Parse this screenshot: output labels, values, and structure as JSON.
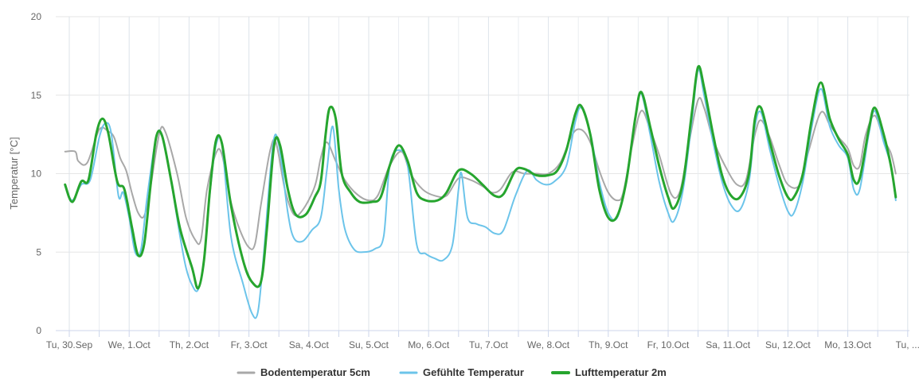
{
  "chart_data": {
    "type": "line",
    "ylabel": "Temperatur [°C]",
    "ylim": [
      0,
      20
    ],
    "yticks": [
      0,
      5,
      10,
      15,
      20
    ],
    "xlim": [
      0,
      14.7
    ],
    "xticks": [
      {
        "pos": 0,
        "label": "Tu, 30.Sep"
      },
      {
        "pos": 1,
        "label": "We, 1.Oct"
      },
      {
        "pos": 2,
        "label": "Th, 2.Oct"
      },
      {
        "pos": 3,
        "label": "Fr, 3.Oct"
      },
      {
        "pos": 4,
        "label": "Sa, 4.Oct"
      },
      {
        "pos": 5,
        "label": "Su, 5.Oct"
      },
      {
        "pos": 6,
        "label": "Mo, 6.Oct"
      },
      {
        "pos": 7,
        "label": "Tu, 7.Oct"
      },
      {
        "pos": 8,
        "label": "We, 8.Oct"
      },
      {
        "pos": 9,
        "label": "Th, 9.Oct"
      },
      {
        "pos": 10,
        "label": "Fr, 10.Oct"
      },
      {
        "pos": 11,
        "label": "Sa, 11.Oct"
      },
      {
        "pos": 12,
        "label": "Su, 12.Oct"
      },
      {
        "pos": 13,
        "label": "Mo, 13.Oct"
      },
      {
        "pos": 14,
        "label": "Tu, ..."
      }
    ],
    "grid": true,
    "legend_position": "bottom-center",
    "series": [
      {
        "name": "Bodentemperatur 5cm",
        "color": "#a8a8a8",
        "width": 2,
        "points": [
          [
            -0.07,
            11.4
          ],
          [
            0.1,
            11.4
          ],
          [
            0.15,
            10.8
          ],
          [
            0.3,
            10.7
          ],
          [
            0.5,
            12.8
          ],
          [
            0.65,
            12.7
          ],
          [
            0.75,
            12.3
          ],
          [
            0.85,
            11.0
          ],
          [
            0.95,
            10.2
          ],
          [
            1.05,
            8.7
          ],
          [
            1.15,
            7.5
          ],
          [
            1.25,
            7.3
          ],
          [
            1.35,
            9.0
          ],
          [
            1.5,
            12.5
          ],
          [
            1.6,
            12.7
          ],
          [
            1.8,
            10.0
          ],
          [
            1.95,
            7.2
          ],
          [
            2.1,
            5.8
          ],
          [
            2.2,
            5.8
          ],
          [
            2.3,
            9.0
          ],
          [
            2.45,
            11.3
          ],
          [
            2.55,
            11.2
          ],
          [
            2.7,
            8.2
          ],
          [
            2.85,
            6.4
          ],
          [
            3.0,
            5.3
          ],
          [
            3.1,
            5.5
          ],
          [
            3.2,
            8.0
          ],
          [
            3.35,
            11.4
          ],
          [
            3.45,
            12.0
          ],
          [
            3.6,
            9.0
          ],
          [
            3.75,
            7.4
          ],
          [
            3.9,
            7.7
          ],
          [
            4.1,
            9.2
          ],
          [
            4.2,
            11.0
          ],
          [
            4.3,
            12.0
          ],
          [
            4.45,
            10.8
          ],
          [
            4.6,
            9.6
          ],
          [
            4.8,
            8.7
          ],
          [
            5.0,
            8.3
          ],
          [
            5.15,
            8.6
          ],
          [
            5.35,
            10.5
          ],
          [
            5.55,
            11.4
          ],
          [
            5.7,
            10.0
          ],
          [
            5.9,
            9.0
          ],
          [
            6.1,
            8.6
          ],
          [
            6.3,
            8.6
          ],
          [
            6.5,
            9.7
          ],
          [
            6.7,
            9.6
          ],
          [
            6.9,
            9.2
          ],
          [
            7.05,
            8.8
          ],
          [
            7.2,
            9.0
          ],
          [
            7.4,
            10.1
          ],
          [
            7.6,
            10.0
          ],
          [
            7.8,
            10.0
          ],
          [
            8.0,
            10.0
          ],
          [
            8.2,
            10.7
          ],
          [
            8.4,
            12.5
          ],
          [
            8.55,
            12.8
          ],
          [
            8.7,
            12.0
          ],
          [
            8.85,
            10.2
          ],
          [
            9.0,
            8.8
          ],
          [
            9.15,
            8.3
          ],
          [
            9.25,
            8.8
          ],
          [
            9.4,
            11.8
          ],
          [
            9.55,
            14.0
          ],
          [
            9.7,
            12.8
          ],
          [
            9.85,
            11.2
          ],
          [
            10.05,
            8.7
          ],
          [
            10.2,
            8.9
          ],
          [
            10.35,
            12.0
          ],
          [
            10.5,
            14.7
          ],
          [
            10.6,
            14.2
          ],
          [
            10.75,
            12.2
          ],
          [
            10.95,
            10.5
          ],
          [
            11.15,
            9.3
          ],
          [
            11.3,
            9.6
          ],
          [
            11.45,
            12.5
          ],
          [
            11.55,
            13.4
          ],
          [
            11.7,
            12.3
          ],
          [
            11.85,
            10.6
          ],
          [
            12.0,
            9.3
          ],
          [
            12.2,
            9.3
          ],
          [
            12.35,
            11.5
          ],
          [
            12.55,
            13.9
          ],
          [
            12.7,
            13.1
          ],
          [
            12.85,
            12.3
          ],
          [
            13.0,
            11.6
          ],
          [
            13.1,
            10.5
          ],
          [
            13.2,
            10.5
          ],
          [
            13.3,
            12.5
          ],
          [
            13.45,
            13.7
          ],
          [
            13.6,
            12.2
          ],
          [
            13.72,
            11.3
          ],
          [
            13.8,
            10.0
          ]
        ]
      },
      {
        "name": "Gefühlte Temperatur",
        "color": "#6cc4ea",
        "width": 2,
        "points": [
          [
            -0.07,
            9.2
          ],
          [
            0.05,
            8.3
          ],
          [
            0.2,
            9.3
          ],
          [
            0.35,
            9.6
          ],
          [
            0.5,
            12.3
          ],
          [
            0.6,
            13.2
          ],
          [
            0.7,
            12.6
          ],
          [
            0.82,
            8.6
          ],
          [
            0.9,
            8.8
          ],
          [
            1.0,
            7.2
          ],
          [
            1.1,
            5.0
          ],
          [
            1.2,
            5.2
          ],
          [
            1.3,
            8.5
          ],
          [
            1.45,
            12.3
          ],
          [
            1.55,
            12.4
          ],
          [
            1.7,
            9.5
          ],
          [
            1.85,
            6.0
          ],
          [
            1.95,
            4.0
          ],
          [
            2.05,
            2.9
          ],
          [
            2.15,
            2.6
          ],
          [
            2.25,
            4.5
          ],
          [
            2.35,
            8.8
          ],
          [
            2.45,
            11.8
          ],
          [
            2.55,
            11.8
          ],
          [
            2.7,
            6.0
          ],
          [
            2.9,
            3.0
          ],
          [
            3.05,
            1.1
          ],
          [
            3.15,
            1.2
          ],
          [
            3.25,
            5.0
          ],
          [
            3.4,
            11.8
          ],
          [
            3.5,
            11.8
          ],
          [
            3.65,
            7.5
          ],
          [
            3.75,
            5.9
          ],
          [
            3.9,
            5.7
          ],
          [
            4.05,
            6.4
          ],
          [
            4.2,
            7.2
          ],
          [
            4.3,
            10.2
          ],
          [
            4.4,
            13.0
          ],
          [
            4.5,
            9.0
          ],
          [
            4.6,
            6.5
          ],
          [
            4.75,
            5.2
          ],
          [
            4.9,
            5.0
          ],
          [
            5.1,
            5.2
          ],
          [
            5.25,
            6.0
          ],
          [
            5.35,
            10.5
          ],
          [
            5.5,
            11.5
          ],
          [
            5.65,
            10.5
          ],
          [
            5.8,
            5.5
          ],
          [
            5.95,
            4.9
          ],
          [
            6.1,
            4.6
          ],
          [
            6.25,
            4.5
          ],
          [
            6.4,
            5.5
          ],
          [
            6.5,
            9.0
          ],
          [
            6.55,
            10.0
          ],
          [
            6.65,
            7.2
          ],
          [
            6.8,
            6.8
          ],
          [
            6.95,
            6.6
          ],
          [
            7.1,
            6.2
          ],
          [
            7.25,
            6.4
          ],
          [
            7.45,
            8.6
          ],
          [
            7.65,
            10.2
          ],
          [
            7.8,
            9.6
          ],
          [
            7.95,
            9.3
          ],
          [
            8.1,
            9.5
          ],
          [
            8.3,
            10.5
          ],
          [
            8.45,
            13.3
          ],
          [
            8.55,
            14.2
          ],
          [
            8.7,
            12.6
          ],
          [
            8.85,
            9.5
          ],
          [
            9.0,
            7.5
          ],
          [
            9.15,
            7.2
          ],
          [
            9.3,
            9.6
          ],
          [
            9.45,
            13.5
          ],
          [
            9.55,
            15.1
          ],
          [
            9.7,
            12.5
          ],
          [
            9.85,
            9.5
          ],
          [
            10.0,
            7.5
          ],
          [
            10.1,
            7.0
          ],
          [
            10.25,
            9.0
          ],
          [
            10.4,
            13.5
          ],
          [
            10.5,
            16.6
          ],
          [
            10.6,
            15.0
          ],
          [
            10.75,
            12.0
          ],
          [
            10.9,
            9.5
          ],
          [
            11.05,
            8.0
          ],
          [
            11.2,
            7.7
          ],
          [
            11.35,
            9.5
          ],
          [
            11.45,
            13.0
          ],
          [
            11.55,
            13.9
          ],
          [
            11.7,
            11.5
          ],
          [
            11.85,
            9.3
          ],
          [
            12.0,
            7.6
          ],
          [
            12.1,
            7.5
          ],
          [
            12.25,
            9.5
          ],
          [
            12.4,
            13.0
          ],
          [
            12.55,
            15.4
          ],
          [
            12.7,
            13.0
          ],
          [
            12.85,
            11.8
          ],
          [
            13.0,
            11.0
          ],
          [
            13.1,
            9.0
          ],
          [
            13.2,
            9.0
          ],
          [
            13.35,
            12.5
          ],
          [
            13.45,
            14.0
          ],
          [
            13.6,
            12.0
          ],
          [
            13.72,
            10.5
          ],
          [
            13.8,
            8.3
          ]
        ]
      },
      {
        "name": "Lufttemperatur 2m",
        "color": "#26a52e",
        "width": 3,
        "points": [
          [
            -0.07,
            9.3
          ],
          [
            0.05,
            8.2
          ],
          [
            0.2,
            9.5
          ],
          [
            0.32,
            9.6
          ],
          [
            0.45,
            12.5
          ],
          [
            0.55,
            13.5
          ],
          [
            0.65,
            12.6
          ],
          [
            0.8,
            9.5
          ],
          [
            0.92,
            9.0
          ],
          [
            1.05,
            6.5
          ],
          [
            1.15,
            4.8
          ],
          [
            1.25,
            5.5
          ],
          [
            1.35,
            9.0
          ],
          [
            1.45,
            12.3
          ],
          [
            1.55,
            12.4
          ],
          [
            1.7,
            9.6
          ],
          [
            1.85,
            6.5
          ],
          [
            2.05,
            4.0
          ],
          [
            2.15,
            2.7
          ],
          [
            2.25,
            4.5
          ],
          [
            2.35,
            9.0
          ],
          [
            2.45,
            12.1
          ],
          [
            2.55,
            11.9
          ],
          [
            2.7,
            8.0
          ],
          [
            2.9,
            4.5
          ],
          [
            3.05,
            3.1
          ],
          [
            3.2,
            3.1
          ],
          [
            3.3,
            6.5
          ],
          [
            3.42,
            11.8
          ],
          [
            3.52,
            11.8
          ],
          [
            3.65,
            9.0
          ],
          [
            3.78,
            7.4
          ],
          [
            3.95,
            7.4
          ],
          [
            4.1,
            8.5
          ],
          [
            4.2,
            9.5
          ],
          [
            4.28,
            12.5
          ],
          [
            4.35,
            14.2
          ],
          [
            4.45,
            13.5
          ],
          [
            4.55,
            10.0
          ],
          [
            4.7,
            8.8
          ],
          [
            4.85,
            8.2
          ],
          [
            5.05,
            8.2
          ],
          [
            5.2,
            8.5
          ],
          [
            5.35,
            10.5
          ],
          [
            5.5,
            11.8
          ],
          [
            5.65,
            10.8
          ],
          [
            5.8,
            8.8
          ],
          [
            5.95,
            8.3
          ],
          [
            6.15,
            8.3
          ],
          [
            6.3,
            8.8
          ],
          [
            6.5,
            10.2
          ],
          [
            6.7,
            10.0
          ],
          [
            6.9,
            9.3
          ],
          [
            7.1,
            8.6
          ],
          [
            7.25,
            8.7
          ],
          [
            7.45,
            10.2
          ],
          [
            7.6,
            10.3
          ],
          [
            7.8,
            9.9
          ],
          [
            8.0,
            9.9
          ],
          [
            8.15,
            10.2
          ],
          [
            8.3,
            11.5
          ],
          [
            8.45,
            13.8
          ],
          [
            8.55,
            14.3
          ],
          [
            8.7,
            12.5
          ],
          [
            8.85,
            9.0
          ],
          [
            9.0,
            7.2
          ],
          [
            9.15,
            7.3
          ],
          [
            9.3,
            9.5
          ],
          [
            9.45,
            13.5
          ],
          [
            9.55,
            15.2
          ],
          [
            9.7,
            13.0
          ],
          [
            9.85,
            10.5
          ],
          [
            10.0,
            8.5
          ],
          [
            10.1,
            7.8
          ],
          [
            10.25,
            9.5
          ],
          [
            10.4,
            14.0
          ],
          [
            10.5,
            16.8
          ],
          [
            10.6,
            15.5
          ],
          [
            10.75,
            12.5
          ],
          [
            10.9,
            9.9
          ],
          [
            11.05,
            8.6
          ],
          [
            11.2,
            8.5
          ],
          [
            11.35,
            10.0
          ],
          [
            11.45,
            13.5
          ],
          [
            11.55,
            14.2
          ],
          [
            11.7,
            12.0
          ],
          [
            11.85,
            9.9
          ],
          [
            12.0,
            8.5
          ],
          [
            12.1,
            8.5
          ],
          [
            12.25,
            10.0
          ],
          [
            12.4,
            13.5
          ],
          [
            12.55,
            15.8
          ],
          [
            12.7,
            13.5
          ],
          [
            12.85,
            12.2
          ],
          [
            13.0,
            11.2
          ],
          [
            13.1,
            9.6
          ],
          [
            13.2,
            9.7
          ],
          [
            13.35,
            12.8
          ],
          [
            13.45,
            14.2
          ],
          [
            13.6,
            12.5
          ],
          [
            13.72,
            10.5
          ],
          [
            13.8,
            8.5
          ]
        ]
      }
    ]
  }
}
